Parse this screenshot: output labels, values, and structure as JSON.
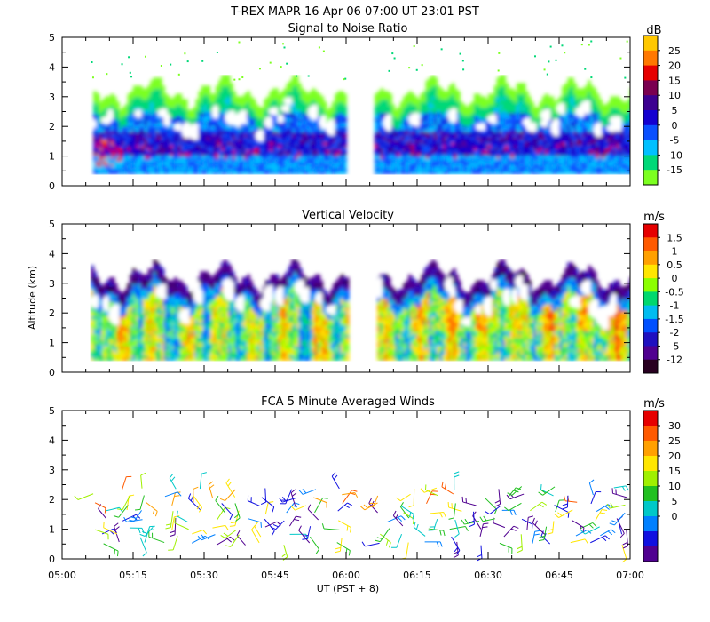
{
  "title": "T-REX   MAPR 16 Apr 06   07:00 UT   23:01   PST",
  "x_axis": {
    "ticks": [
      "05:00",
      "05:15",
      "05:30",
      "05:45",
      "06:00",
      "06:15",
      "06:30",
      "06:45",
      "07:00"
    ],
    "label": "UT  (PST + 8)"
  },
  "y_axis": {
    "label": "Altitude (km)",
    "ticks": [
      "0",
      "1",
      "2",
      "3",
      "4",
      "5"
    ]
  },
  "chart_data": [
    {
      "type": "heatmap",
      "title": "Signal to Noise Ratio",
      "xlabel": "UT  (PST + 8)",
      "ylabel": "Altitude (km)",
      "xlim": [
        "05:00",
        "07:00"
      ],
      "ylim": [
        0,
        5
      ],
      "data_gap": [
        "06:00",
        "06:05"
      ],
      "colorbar": {
        "unit": "dB",
        "labels": [
          "25",
          "20",
          "15",
          "10",
          "5",
          "0",
          "-5",
          "-10",
          "-15"
        ],
        "colors": [
          "#ffc800",
          "#ff7800",
          "#e60000",
          "#7a0050",
          "#3c0090",
          "#1400d0",
          "#0a50ff",
          "#00c0ff",
          "#00d878",
          "#7cff20"
        ]
      }
    },
    {
      "type": "heatmap",
      "title": "Vertical Velocity",
      "xlabel": "UT  (PST + 8)",
      "ylabel": "Altitude (km)",
      "xlim": [
        "05:00",
        "07:00"
      ],
      "ylim": [
        0,
        5
      ],
      "data_gap": [
        "06:00",
        "06:05"
      ],
      "colorbar": {
        "unit": "m/s",
        "labels": [
          "1.5",
          "1",
          "0.5",
          "0",
          "-0.5",
          "-1",
          "-1.5",
          "-2",
          "-5",
          "-12"
        ],
        "colors": [
          "#e60000",
          "#ff5a00",
          "#ffa000",
          "#ffe600",
          "#8cff00",
          "#00d86e",
          "#00bcf0",
          "#0050ff",
          "#2010c0",
          "#500090",
          "#280020"
        ]
      }
    },
    {
      "type": "scatter",
      "title": "FCA 5 Minute Averaged Winds",
      "xlabel": "UT  (PST + 8)",
      "ylabel": "Altitude (km)",
      "xlim": [
        "05:00",
        "07:00"
      ],
      "ylim": [
        0,
        5
      ],
      "data_gap": [
        "06:00",
        "06:05"
      ],
      "colorbar": {
        "unit": "m/s",
        "labels": [
          "30",
          "25",
          "20",
          "15",
          "10",
          "5",
          "0"
        ],
        "colors": [
          "#e60000",
          "#ff5a00",
          "#ffa000",
          "#ffe600",
          "#a0f000",
          "#22c020",
          "#00c8c8",
          "#0080ff",
          "#1010e0",
          "#500090"
        ]
      }
    }
  ]
}
